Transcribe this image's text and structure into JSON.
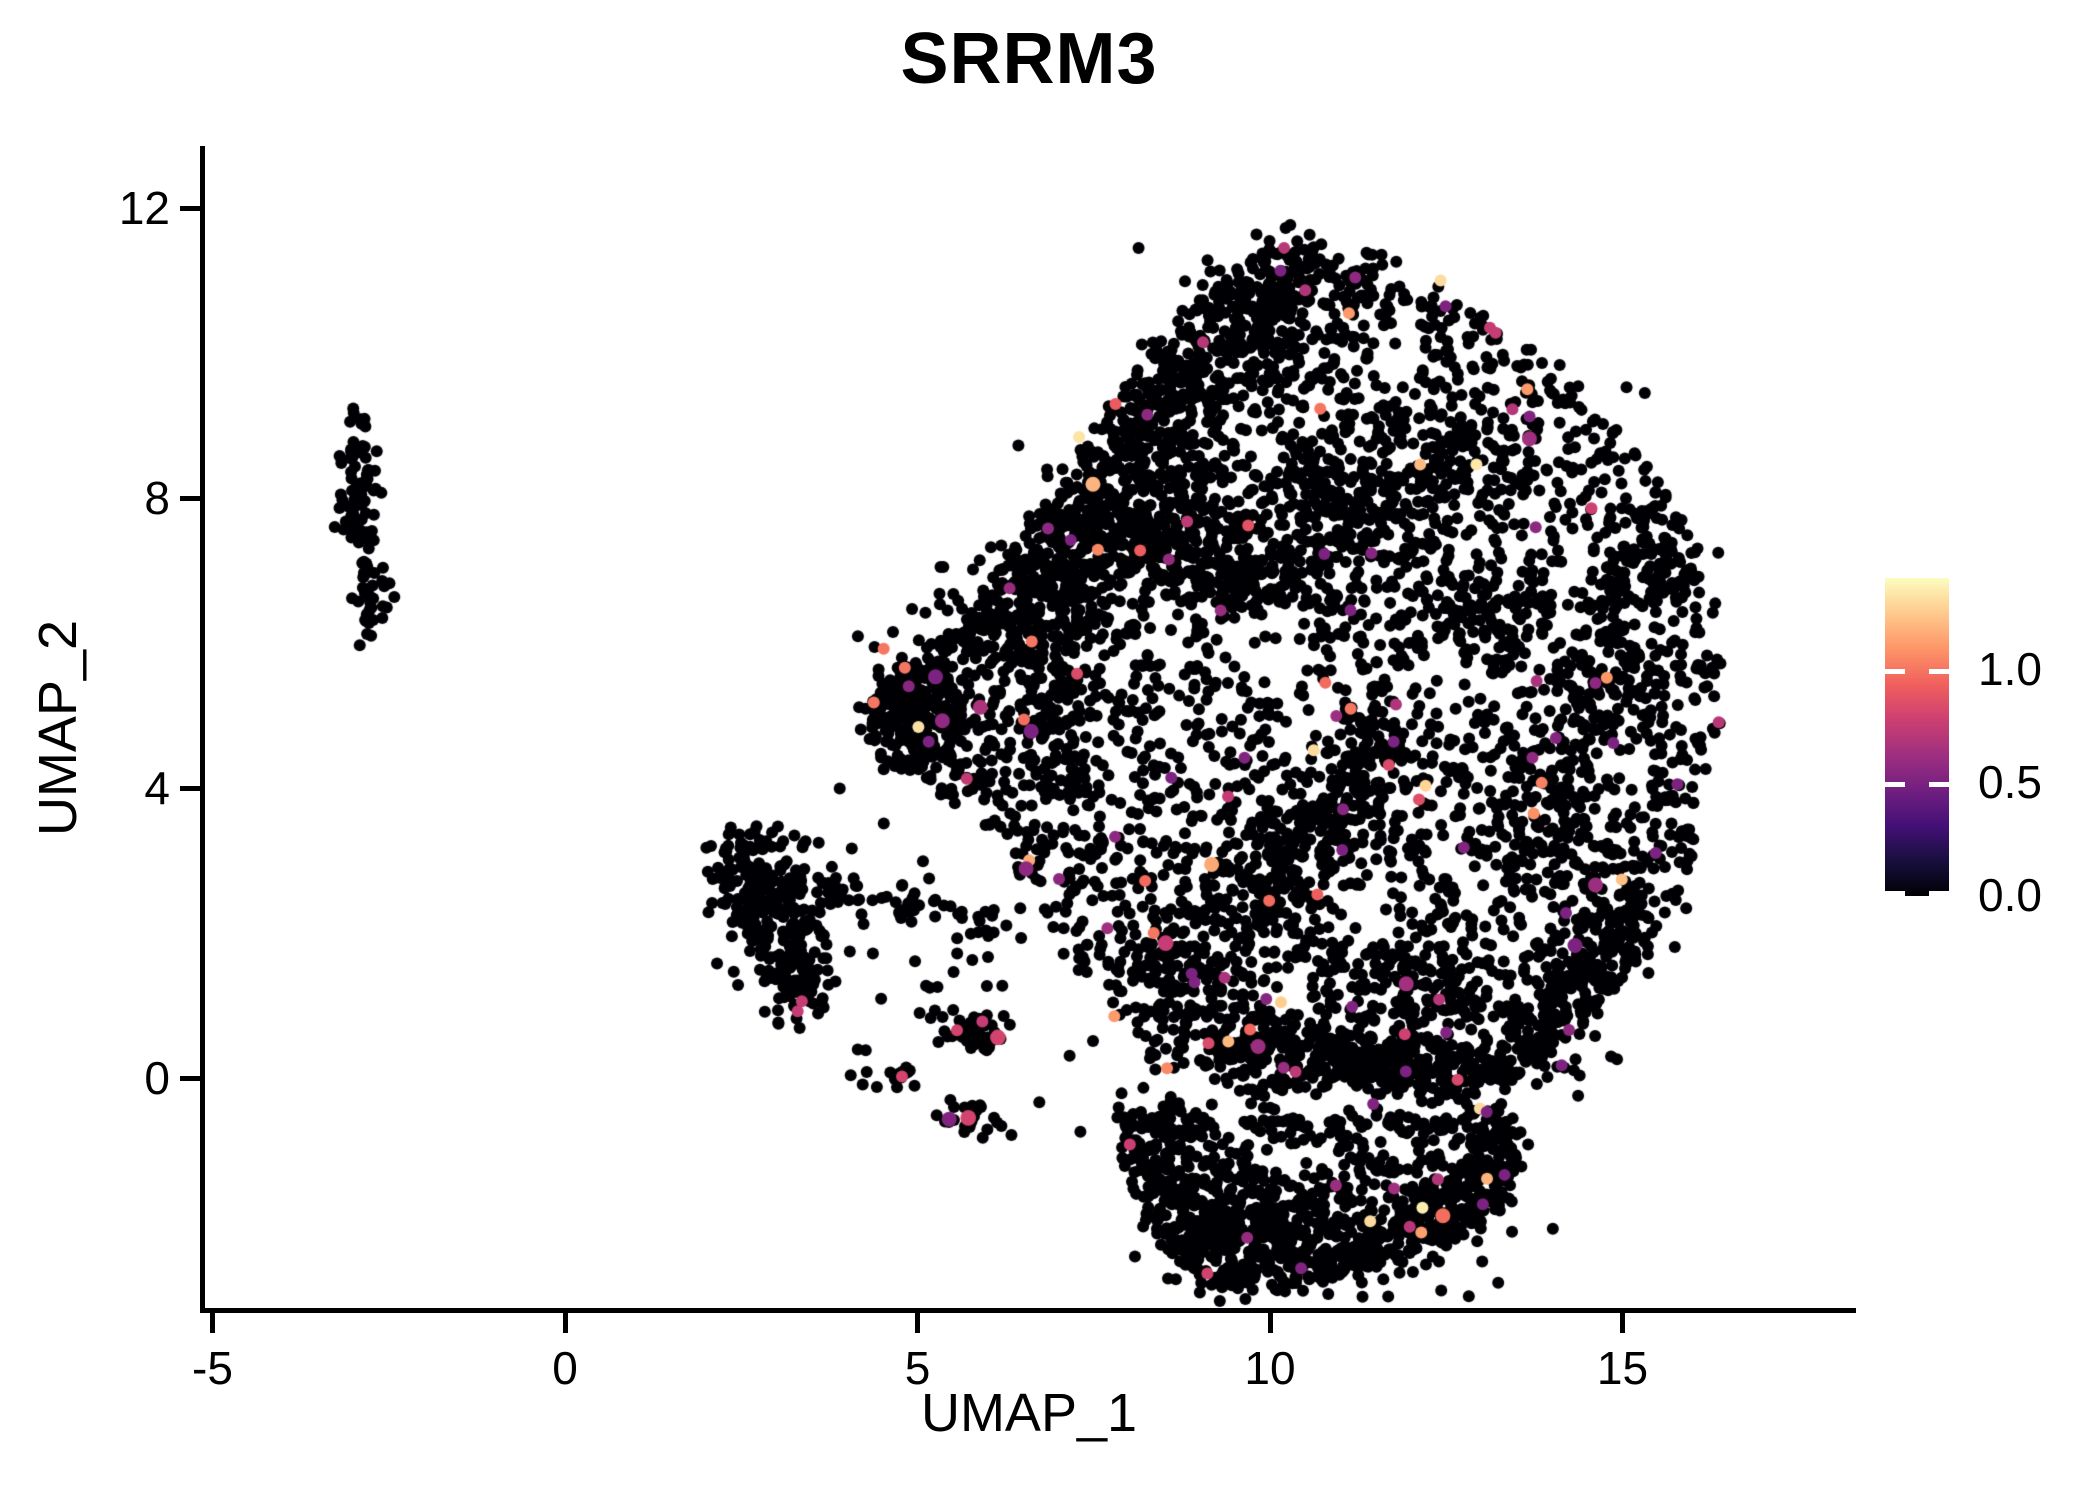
{
  "title": "SRRM3",
  "axes": {
    "x": {
      "label": "UMAP_1",
      "ticks": [
        -5,
        0,
        5,
        10,
        15
      ]
    },
    "y": {
      "label": "UMAP_2",
      "ticks": [
        0,
        4,
        8,
        12
      ]
    }
  },
  "legend": {
    "tick_labels": [
      "0.0",
      "0.5",
      "1.0"
    ],
    "tick_values": [
      0,
      0.5,
      1
    ],
    "vmin": 0,
    "vmax": 1.4
  },
  "colors": {
    "background": "#ffffff",
    "axis": "#000000",
    "text": "#000000",
    "point_default": "#000004",
    "highlight_magenta": "#b53778",
    "highlight_orange": "#fa9a5e",
    "highlight_pale_yellow": "#fcfdbf"
  },
  "chart_data": {
    "type": "scatter",
    "title": "SRRM3",
    "xlabel": "UMAP_1",
    "ylabel": "UMAP_2",
    "xlim": [
      -5.15,
      18.3
    ],
    "ylim": [
      -3.2,
      12.85
    ],
    "x_ticks": [
      -5,
      0,
      5,
      10,
      15
    ],
    "y_ticks": [
      0,
      4,
      8,
      12
    ],
    "grid": false,
    "legend_position": "right",
    "color_scale": {
      "name": "magma",
      "vmin": 0,
      "vmax": 1.4,
      "legend_ticks": [
        0,
        0.5,
        1
      ]
    },
    "colormap_stops": [
      {
        "pos": 0.0,
        "hex": "#000004"
      },
      {
        "pos": 0.111,
        "hex": "#180f3e"
      },
      {
        "pos": 0.222,
        "hex": "#451077"
      },
      {
        "pos": 0.333,
        "hex": "#721f81"
      },
      {
        "pos": 0.444,
        "hex": "#9f2f7f"
      },
      {
        "pos": 0.556,
        "hex": "#cd4071"
      },
      {
        "pos": 0.667,
        "hex": "#f1605d"
      },
      {
        "pos": 0.778,
        "hex": "#fd9567"
      },
      {
        "pos": 0.889,
        "hex": "#feca8d"
      },
      {
        "pos": 1.0,
        "hex": "#fcfdbf"
      }
    ],
    "seed": 42,
    "colored_value_sampler": {
      "base": 0.5,
      "scale": 0.9,
      "power": 2.8,
      "max": 1.35
    },
    "clusters": [
      {
        "name": "far-left-cluster",
        "colored_fraction": 0,
        "shapes": [
          {
            "type": "gauss",
            "cx": -2.95,
            "cy": 8.15,
            "sx": 0.14,
            "sy": 0.48,
            "n": 74
          },
          {
            "type": "gauss",
            "cx": -2.73,
            "cy": 6.6,
            "sx": 0.1,
            "sy": 0.27,
            "n": 36
          },
          {
            "type": "gauss",
            "cx": -2.82,
            "cy": 7.15,
            "sx": 0.08,
            "sy": 0.18,
            "n": 7
          }
        ]
      },
      {
        "name": "mid-left-cluster",
        "colored_fraction": 0.004,
        "shapes": [
          {
            "type": "gauss",
            "cx": 2.95,
            "cy": 2.35,
            "sx": 0.42,
            "sy": 0.5,
            "n": 190
          },
          {
            "type": "gauss",
            "cx": 2.62,
            "cy": 2.95,
            "sx": 0.28,
            "sy": 0.22,
            "n": 55
          },
          {
            "type": "gauss",
            "cx": 3.3,
            "cy": 1.4,
            "sx": 0.32,
            "sy": 0.3,
            "n": 70
          },
          {
            "type": "line",
            "x1": 3.7,
            "y1": 2.72,
            "x2": 6.3,
            "y2": 2.05,
            "jitter": 0.17,
            "n": 55
          },
          {
            "type": "box",
            "x1": 4.3,
            "y1": 0.7,
            "x2": 6.2,
            "y2": 1.9,
            "n": 18
          },
          {
            "type": "gauss",
            "cx": 5.8,
            "cy": 0.62,
            "sx": 0.24,
            "sy": 0.13,
            "n": 36
          },
          {
            "type": "gauss",
            "cx": 4.78,
            "cy": 0.02,
            "sx": 0.1,
            "sy": 0.08,
            "n": 12
          },
          {
            "type": "gauss",
            "cx": 5.76,
            "cy": -0.6,
            "sx": 0.22,
            "sy": 0.15,
            "n": 28
          },
          {
            "type": "box",
            "x1": 3.8,
            "y1": -0.2,
            "x2": 4.6,
            "y2": 0.5,
            "n": 6
          }
        ]
      },
      {
        "name": "main-blob",
        "colored_fraction": 0.016,
        "fill_n": 3050,
        "polygon": [
          [
            4.3,
            4.6
          ],
          [
            4.35,
            5.15
          ],
          [
            4.75,
            5.75
          ],
          [
            5.45,
            6.1
          ],
          [
            5.95,
            6.65
          ],
          [
            6.3,
            7.3
          ],
          [
            6.9,
            8.1
          ],
          [
            7.5,
            8.9
          ],
          [
            8.1,
            9.8
          ],
          [
            8.8,
            10.7
          ],
          [
            9.5,
            11.3
          ],
          [
            10.2,
            11.75
          ],
          [
            10.9,
            11.7
          ],
          [
            11.5,
            11.4
          ],
          [
            12.2,
            11.0
          ],
          [
            12.9,
            10.55
          ],
          [
            13.7,
            10.1
          ],
          [
            14.35,
            9.5
          ],
          [
            15.0,
            8.9
          ],
          [
            15.55,
            8.2
          ],
          [
            16.0,
            7.4
          ],
          [
            16.3,
            6.6
          ],
          [
            16.45,
            5.7
          ],
          [
            16.35,
            4.7
          ],
          [
            16.1,
            3.8
          ],
          [
            15.95,
            2.8
          ],
          [
            15.55,
            1.95
          ],
          [
            15.0,
            1.25
          ],
          [
            14.4,
            0.7
          ],
          [
            13.9,
            0.3
          ],
          [
            13.4,
            -0.05
          ],
          [
            12.8,
            -0.35
          ],
          [
            12.2,
            -0.2
          ],
          [
            11.5,
            -0.3
          ],
          [
            10.8,
            -0.15
          ],
          [
            10.1,
            -0.3
          ],
          [
            9.5,
            -0.2
          ],
          [
            8.95,
            0.05
          ],
          [
            8.4,
            0.35
          ],
          [
            7.9,
            0.75
          ],
          [
            7.4,
            1.25
          ],
          [
            7.0,
            1.85
          ],
          [
            6.6,
            2.5
          ],
          [
            6.25,
            3.2
          ],
          [
            5.7,
            3.7
          ],
          [
            5.1,
            4.05
          ],
          [
            4.6,
            4.3
          ]
        ],
        "voids": [
          [
            9.9,
            5.95,
            0.8,
            0.92
          ],
          [
            10.7,
            4.7,
            0.62,
            0.85
          ],
          [
            12.5,
            5.4,
            0.9,
            0.8
          ],
          [
            14.2,
            6.1,
            1.0,
            0.88
          ],
          [
            13.0,
            7.8,
            0.7,
            0.75
          ],
          [
            7.5,
            4.6,
            0.55,
            0.8
          ],
          [
            9.0,
            3.4,
            0.5,
            0.7
          ],
          [
            11.3,
            2.3,
            0.8,
            0.82
          ],
          [
            13.5,
            1.7,
            0.65,
            0.75
          ],
          [
            9.4,
            8.7,
            0.55,
            0.65
          ],
          [
            11.6,
            9.9,
            0.6,
            0.7
          ],
          [
            15.0,
            4.3,
            0.55,
            0.7
          ],
          [
            10.4,
            1.2,
            0.45,
            0.7
          ],
          [
            8.3,
            6.3,
            0.45,
            0.6
          ],
          [
            12.0,
            3.9,
            0.5,
            0.55
          ],
          [
            13.9,
            8.9,
            0.5,
            0.6
          ],
          [
            15.4,
            6.4,
            0.5,
            0.65
          ],
          [
            9.1,
            1.9,
            0.4,
            0.55
          ],
          [
            10.9,
            8.6,
            0.5,
            0.5
          ],
          [
            12.4,
            9.0,
            0.45,
            0.5
          ],
          [
            14.6,
            7.5,
            0.45,
            0.55
          ],
          [
            13.2,
            4.4,
            0.45,
            0.5
          ],
          [
            11.9,
            6.7,
            0.45,
            0.45
          ],
          [
            8.5,
            4.9,
            0.4,
            0.5
          ],
          [
            13.0,
            2.9,
            0.4,
            0.5
          ],
          [
            14.4,
            2.4,
            0.4,
            0.5
          ],
          [
            9.8,
            9.8,
            0.45,
            0.5
          ],
          [
            8.2,
            8.0,
            0.4,
            0.45
          ],
          [
            10.4,
            10.6,
            0.4,
            0.45
          ],
          [
            6.9,
            3.3,
            0.35,
            0.5
          ],
          [
            7.6,
            2.6,
            0.35,
            0.45
          ],
          [
            10.0,
            7.3,
            0.4,
            0.4
          ],
          [
            11.2,
            5.6,
            0.4,
            0.4
          ],
          [
            12.6,
            0.7,
            0.35,
            0.45
          ],
          [
            16.0,
            5.0,
            0.3,
            0.5
          ]
        ],
        "patches": [
          [
            4.95,
            5.0,
            0.4,
            0.5,
            260
          ],
          [
            5.9,
            6.4,
            0.35,
            0.4,
            90
          ],
          [
            6.8,
            6.8,
            0.5,
            0.55,
            170
          ],
          [
            7.5,
            7.7,
            0.45,
            0.5,
            120
          ],
          [
            8.2,
            8.6,
            0.5,
            0.5,
            130
          ],
          [
            8.9,
            9.5,
            0.5,
            0.45,
            120
          ],
          [
            9.7,
            10.5,
            0.55,
            0.45,
            110
          ],
          [
            10.6,
            11.0,
            0.5,
            0.35,
            80
          ],
          [
            6.9,
            5.2,
            0.35,
            0.8,
            110
          ],
          [
            8.6,
            7.4,
            0.6,
            0.5,
            120
          ],
          [
            9.6,
            6.9,
            0.4,
            0.45,
            80
          ],
          [
            10.9,
            7.9,
            0.55,
            0.55,
            120
          ],
          [
            12.3,
            8.4,
            0.65,
            0.55,
            120
          ],
          [
            9.9,
            2.7,
            0.55,
            0.45,
            100
          ],
          [
            8.7,
            1.4,
            0.5,
            0.45,
            100
          ],
          [
            10.8,
            3.7,
            0.5,
            0.4,
            80
          ],
          [
            12.1,
            1.3,
            0.55,
            0.4,
            90
          ],
          [
            14.7,
            5.7,
            0.4,
            0.7,
            100
          ],
          [
            15.4,
            7.0,
            0.4,
            0.55,
            80
          ],
          [
            13.9,
            3.7,
            0.5,
            0.45,
            80
          ],
          [
            15.0,
            2.3,
            0.45,
            0.4,
            70
          ],
          [
            13.1,
            6.4,
            0.5,
            0.45,
            80
          ],
          [
            11.5,
            4.5,
            0.5,
            0.45,
            80
          ],
          [
            10.6,
            0.3,
            1.15,
            0.22,
            220
          ],
          [
            12.7,
            0.12,
            1.15,
            0.22,
            220
          ],
          [
            14.1,
            0.8,
            0.45,
            0.3,
            70
          ],
          [
            14.6,
            1.7,
            0.45,
            0.35,
            70
          ]
        ]
      },
      {
        "name": "bottom-lobe",
        "colored_fraction": 0.012,
        "fill_n": 680,
        "polygon": [
          [
            7.85,
            -0.5
          ],
          [
            8.5,
            -0.3
          ],
          [
            9.2,
            -0.5
          ],
          [
            9.9,
            -0.35
          ],
          [
            10.6,
            -0.55
          ],
          [
            11.4,
            -0.4
          ],
          [
            12.2,
            -0.6
          ],
          [
            12.9,
            -0.4
          ],
          [
            13.5,
            -0.55
          ],
          [
            13.6,
            -1.1
          ],
          [
            13.35,
            -1.7
          ],
          [
            12.85,
            -2.1
          ],
          [
            12.2,
            -2.4
          ],
          [
            11.5,
            -2.6
          ],
          [
            10.8,
            -2.8
          ],
          [
            10.15,
            -3.0
          ],
          [
            9.55,
            -2.95
          ],
          [
            8.95,
            -2.8
          ],
          [
            8.5,
            -2.35
          ],
          [
            8.15,
            -1.75
          ],
          [
            7.9,
            -1.1
          ]
        ],
        "voids": [
          [
            10.35,
            -1.15,
            0.55,
            0.75
          ],
          [
            11.7,
            -1.3,
            0.7,
            0.8
          ],
          [
            9.0,
            -1.05,
            0.4,
            0.55
          ],
          [
            12.85,
            -1.0,
            0.35,
            0.5
          ],
          [
            10.9,
            -2.0,
            0.45,
            0.5
          ],
          [
            9.7,
            -0.8,
            0.35,
            0.5
          ]
        ],
        "patches": [
          [
            9.6,
            -2.05,
            0.55,
            0.45,
            150
          ],
          [
            12.5,
            -1.95,
            0.55,
            0.4,
            130
          ],
          [
            11.2,
            -2.55,
            0.7,
            0.22,
            110
          ],
          [
            8.55,
            -0.95,
            0.35,
            0.5,
            80
          ],
          [
            13.25,
            -0.85,
            0.3,
            0.5,
            70
          ],
          [
            8.9,
            -2.2,
            0.4,
            0.35,
            70
          ]
        ]
      }
    ],
    "outlier_points": [
      [
        15.05,
        9.55
      ],
      [
        15.28,
        9.5
      ],
      [
        8.2,
        11.35
      ],
      [
        3.95,
        4.0
      ],
      [
        3.6,
        3.3
      ],
      [
        6.8,
        -0.35
      ],
      [
        7.3,
        -0.7
      ],
      [
        4.55,
        3.5
      ],
      [
        5.1,
        3.0
      ],
      [
        4.4,
        5.95
      ]
    ],
    "highlight_points": [
      {
        "x": 4.52,
        "y": 5.92,
        "v": 1.0
      },
      {
        "x": 4.82,
        "y": 5.66,
        "v": 1.0
      },
      {
        "x": 4.38,
        "y": 5.18,
        "v": 1.0
      },
      {
        "x": 6.62,
        "y": 6.02,
        "v": 1.0
      },
      {
        "x": 12.42,
        "y": 11.0,
        "v": 1.3
      },
      {
        "x": 10.62,
        "y": 4.52,
        "v": 1.3
      },
      {
        "x": 8.35,
        "y": 2.0,
        "v": 1.0
      },
      {
        "x": 8.52,
        "y": 1.86,
        "v": 0.75,
        "big": true
      },
      {
        "x": 3.36,
        "y": 1.06,
        "v": 0.75
      },
      {
        "x": 3.3,
        "y": 0.92,
        "v": 0.75
      },
      {
        "x": 5.56,
        "y": 0.66,
        "v": 0.8
      },
      {
        "x": 5.92,
        "y": 0.78,
        "v": 0.75
      },
      {
        "x": 6.14,
        "y": 0.56,
        "v": 0.8,
        "big": true
      },
      {
        "x": 4.78,
        "y": 0.02,
        "v": 0.8
      },
      {
        "x": 5.72,
        "y": -0.55,
        "v": 0.8,
        "big": true
      },
      {
        "x": 13.12,
        "y": 10.35,
        "v": 0.75
      },
      {
        "x": 13.2,
        "y": 10.28,
        "v": 0.75
      },
      {
        "x": 11.12,
        "y": 10.55,
        "v": 1.1
      },
      {
        "x": 13.65,
        "y": 9.5,
        "v": 1.1
      },
      {
        "x": 9.05,
        "y": 10.15,
        "v": 0.7
      },
      {
        "x": 10.2,
        "y": 11.45,
        "v": 0.7
      },
      {
        "x": 9.3,
        "y": 6.45,
        "v": 0.6
      }
    ]
  }
}
